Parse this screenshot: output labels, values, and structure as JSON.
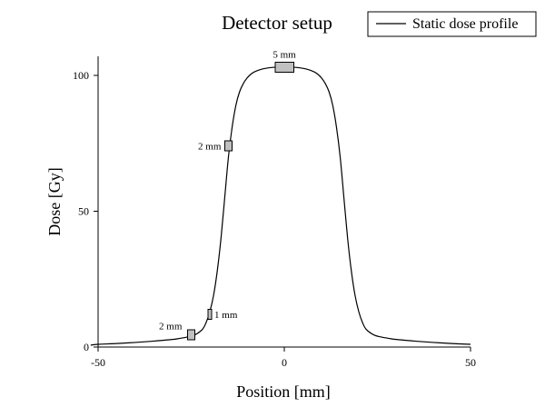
{
  "chart_data": {
    "type": "line",
    "title": "Detector setup",
    "xlabel": "Position [mm]",
    "ylabel": "Dose [Gy]",
    "xlim": [
      -50,
      50
    ],
    "ylim": [
      0,
      107
    ],
    "x_ticks": [
      -50,
      0,
      50
    ],
    "y_ticks": [
      0,
      50,
      100
    ],
    "grid": false,
    "legend_position": "top-right",
    "series": [
      {
        "name": "Static dose profile",
        "color": "#000000",
        "x": [
          -52,
          -50,
          -45,
          -40,
          -35,
          -30,
          -28,
          -26,
          -24,
          -22,
          -21,
          -20,
          -19,
          -18,
          -17,
          -16,
          -15,
          -14,
          -13,
          -12,
          -11,
          -10,
          -9,
          -8,
          -6,
          -4,
          -2,
          0,
          2,
          4,
          6,
          8,
          9,
          10,
          11,
          12,
          13,
          14,
          15,
          16,
          17,
          18,
          19,
          20,
          21,
          22,
          24,
          26,
          28,
          30,
          35,
          40,
          45,
          50
        ],
        "y": [
          0.7,
          1.0,
          1.3,
          1.7,
          2.2,
          2.8,
          3.2,
          3.7,
          4.5,
          6.5,
          9.0,
          13.0,
          19.0,
          28.0,
          40.0,
          55.0,
          70.0,
          81.0,
          89.0,
          94.0,
          97.0,
          99.0,
          100.4,
          101.3,
          102.3,
          102.8,
          103.0,
          103.0,
          103.0,
          102.8,
          102.3,
          101.3,
          100.4,
          99.0,
          97.0,
          94.0,
          89.0,
          81.0,
          70.0,
          55.0,
          40.0,
          28.0,
          19.0,
          13.0,
          9.0,
          6.5,
          4.5,
          3.7,
          3.2,
          2.8,
          2.2,
          1.7,
          1.3,
          1.0
        ]
      }
    ],
    "annotations": [
      {
        "label": "5 mm",
        "x_center": 0,
        "width_mm": 5,
        "y": 103
      },
      {
        "label": "2 mm",
        "x_center": -15,
        "width_mm": 2,
        "y": 74
      },
      {
        "label": "1 mm",
        "x_center": -20,
        "width_mm": 1,
        "y": 12
      },
      {
        "label": "2 mm",
        "x_center": -25,
        "width_mm": 2,
        "y": 4.5
      }
    ],
    "annotation_color": "#c0c0c0"
  }
}
